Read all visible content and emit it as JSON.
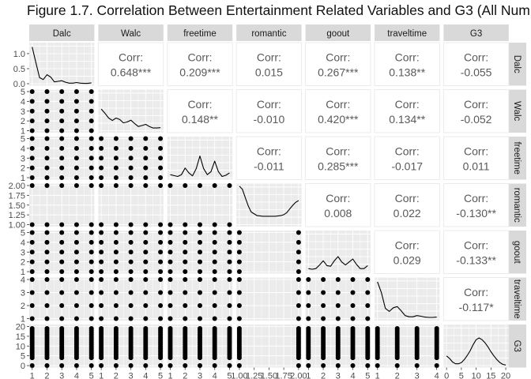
{
  "title": "Figure 1.7. Correlation Between Entertainment Related Variables and G3 (All Num",
  "colors": {
    "panel_bg": "#ebebeb",
    "grid": "#ffffff",
    "strip_bg": "#d9d9d9",
    "point": "#000000",
    "corr_text": "#595959",
    "tick_text": "#4d4d4d"
  },
  "chart_data": {
    "type": "scatter-matrix",
    "variables": [
      "Dalc",
      "Walc",
      "freetime",
      "romantic",
      "goout",
      "traveltime",
      "G3"
    ],
    "ranges": {
      "Dalc": [
        1,
        5
      ],
      "Walc": [
        1,
        5
      ],
      "freetime": [
        1,
        5
      ],
      "romantic": [
        1,
        2
      ],
      "goout": [
        1,
        5
      ],
      "traveltime": [
        1,
        4
      ],
      "G3": [
        0,
        20
      ]
    },
    "x_ticks": {
      "Dalc": [
        "1",
        "2",
        "3",
        "4",
        "5"
      ],
      "Walc": [
        "1",
        "2",
        "3",
        "4",
        "5"
      ],
      "freetime": [
        "1",
        "2",
        "3",
        "4",
        "5"
      ],
      "romantic": [
        "1.00",
        "1.25",
        "1.50",
        "1.75",
        "2.00"
      ],
      "goout": [
        "1",
        "2",
        "3",
        "4",
        "5"
      ],
      "traveltime": [
        "1",
        "2",
        "3",
        "4"
      ],
      "G3": [
        "0",
        "5",
        "10",
        "15",
        "20"
      ]
    },
    "y_ticks": {
      "Dalc": [
        "0.0",
        "0.5",
        "1.0"
      ],
      "Walc": [
        "1",
        "2",
        "3",
        "4",
        "5"
      ],
      "freetime": [
        "1",
        "2",
        "3",
        "4",
        "5"
      ],
      "romantic": [
        "1.00",
        "1.25",
        "1.50",
        "1.75",
        "2.00"
      ],
      "goout": [
        "1",
        "2",
        "3",
        "4",
        "5"
      ],
      "traveltime": [
        "1",
        "2",
        "3",
        "4"
      ],
      "G3": [
        "0",
        "5",
        "10",
        "15",
        "20"
      ]
    },
    "density_ylim": [
      0,
      1.3
    ],
    "corr_label": "Corr:",
    "correlations": [
      {
        "row": "Dalc",
        "col": "Walc",
        "value": "0.648***"
      },
      {
        "row": "Dalc",
        "col": "freetime",
        "value": "0.209***"
      },
      {
        "row": "Dalc",
        "col": "romantic",
        "value": "0.015"
      },
      {
        "row": "Dalc",
        "col": "goout",
        "value": "0.267***"
      },
      {
        "row": "Dalc",
        "col": "traveltime",
        "value": "0.138**"
      },
      {
        "row": "Dalc",
        "col": "G3",
        "value": "-0.055"
      },
      {
        "row": "Walc",
        "col": "freetime",
        "value": "0.148**"
      },
      {
        "row": "Walc",
        "col": "romantic",
        "value": "-0.010"
      },
      {
        "row": "Walc",
        "col": "goout",
        "value": "0.420***"
      },
      {
        "row": "Walc",
        "col": "traveltime",
        "value": "0.134**"
      },
      {
        "row": "Walc",
        "col": "G3",
        "value": "-0.052"
      },
      {
        "row": "freetime",
        "col": "romantic",
        "value": "-0.011"
      },
      {
        "row": "freetime",
        "col": "goout",
        "value": "0.285***"
      },
      {
        "row": "freetime",
        "col": "traveltime",
        "value": "-0.017"
      },
      {
        "row": "freetime",
        "col": "G3",
        "value": "0.011"
      },
      {
        "row": "romantic",
        "col": "goout",
        "value": "0.008"
      },
      {
        "row": "romantic",
        "col": "traveltime",
        "value": "0.022"
      },
      {
        "row": "romantic",
        "col": "G3",
        "value": "-0.130**"
      },
      {
        "row": "goout",
        "col": "traveltime",
        "value": "0.029"
      },
      {
        "row": "goout",
        "col": "G3",
        "value": "-0.133**"
      },
      {
        "row": "traveltime",
        "col": "G3",
        "value": "-0.117*"
      }
    ],
    "densities": {
      "Dalc": {
        "x": [
          1,
          1.25,
          1.5,
          1.75,
          2,
          2.25,
          2.5,
          2.75,
          3,
          3.25,
          3.5,
          3.75,
          4,
          4.25,
          4.5,
          4.75,
          5
        ],
        "y": [
          1.22,
          0.7,
          0.2,
          0.14,
          0.3,
          0.22,
          0.06,
          0.08,
          0.1,
          0.05,
          0.02,
          0.02,
          0.04,
          0.02,
          0.01,
          0.01,
          0.03
        ]
      },
      "Walc": {
        "x": [
          1,
          1.25,
          1.5,
          1.75,
          2,
          2.25,
          2.5,
          2.75,
          3,
          3.25,
          3.5,
          3.75,
          4,
          4.25,
          4.5,
          4.75,
          5
        ],
        "y": [
          0.72,
          0.58,
          0.42,
          0.34,
          0.42,
          0.37,
          0.26,
          0.29,
          0.35,
          0.24,
          0.14,
          0.17,
          0.21,
          0.14,
          0.09,
          0.09,
          0.1
        ]
      },
      "freetime": {
        "x": [
          1,
          1.25,
          1.5,
          1.75,
          2,
          2.25,
          2.5,
          2.75,
          3,
          3.25,
          3.5,
          3.75,
          4,
          4.25,
          4.5,
          4.75,
          5
        ],
        "y": [
          0.1,
          0.07,
          0.04,
          0.1,
          0.32,
          0.16,
          0.06,
          0.3,
          0.72,
          0.3,
          0.1,
          0.2,
          0.55,
          0.2,
          0.04,
          0.08,
          0.16
        ]
      },
      "romantic": {
        "x": [
          1,
          1.05,
          1.1,
          1.15,
          1.2,
          1.3,
          1.4,
          1.5,
          1.6,
          1.7,
          1.75,
          1.8,
          1.85,
          1.9,
          1.95,
          2
        ],
        "y": [
          1.28,
          1.18,
          0.9,
          0.62,
          0.42,
          0.3,
          0.28,
          0.28,
          0.28,
          0.3,
          0.33,
          0.4,
          0.52,
          0.64,
          0.74,
          0.8
        ]
      },
      "goout": {
        "x": [
          1,
          1.25,
          1.5,
          1.75,
          2,
          2.25,
          2.5,
          2.75,
          3,
          3.25,
          3.5,
          3.75,
          4,
          4.25,
          4.5,
          4.75,
          5
        ],
        "y": [
          0.1,
          0.08,
          0.1,
          0.22,
          0.36,
          0.2,
          0.18,
          0.36,
          0.5,
          0.32,
          0.22,
          0.32,
          0.42,
          0.24,
          0.1,
          0.1,
          0.2
        ]
      },
      "traveltime": {
        "x": [
          1,
          1.2,
          1.4,
          1.6,
          1.8,
          2,
          2.2,
          2.4,
          2.6,
          2.8,
          3,
          3.2,
          3.4,
          3.6,
          3.8,
          4
        ],
        "y": [
          1.22,
          0.86,
          0.34,
          0.24,
          0.36,
          0.4,
          0.26,
          0.1,
          0.06,
          0.06,
          0.1,
          0.08,
          0.05,
          0.04,
          0.04,
          0.05
        ]
      },
      "G3": {
        "x": [
          0,
          1,
          2,
          3,
          4,
          5,
          6,
          7,
          8,
          9,
          10,
          11,
          12,
          13,
          14,
          15,
          16,
          17,
          18,
          19,
          20
        ],
        "y": [
          0.32,
          0.24,
          0.12,
          0.06,
          0.06,
          0.1,
          0.2,
          0.34,
          0.5,
          0.7,
          0.86,
          0.92,
          0.86,
          0.76,
          0.62,
          0.46,
          0.32,
          0.2,
          0.1,
          0.04,
          0.02
        ]
      }
    },
    "scatter_values": {
      "Dalc": [
        1,
        2,
        3,
        4,
        5
      ],
      "Walc": [
        1,
        2,
        3,
        4,
        5
      ],
      "freetime": [
        1,
        2,
        3,
        4,
        5
      ],
      "romantic": [
        1,
        2
      ],
      "goout": [
        1,
        2,
        3,
        4,
        5
      ],
      "traveltime": [
        1,
        2,
        3,
        4
      ],
      "G3": [
        0,
        4,
        5,
        6,
        7,
        8,
        9,
        10,
        11,
        12,
        13,
        14,
        15,
        16,
        17,
        18,
        19
      ]
    }
  }
}
